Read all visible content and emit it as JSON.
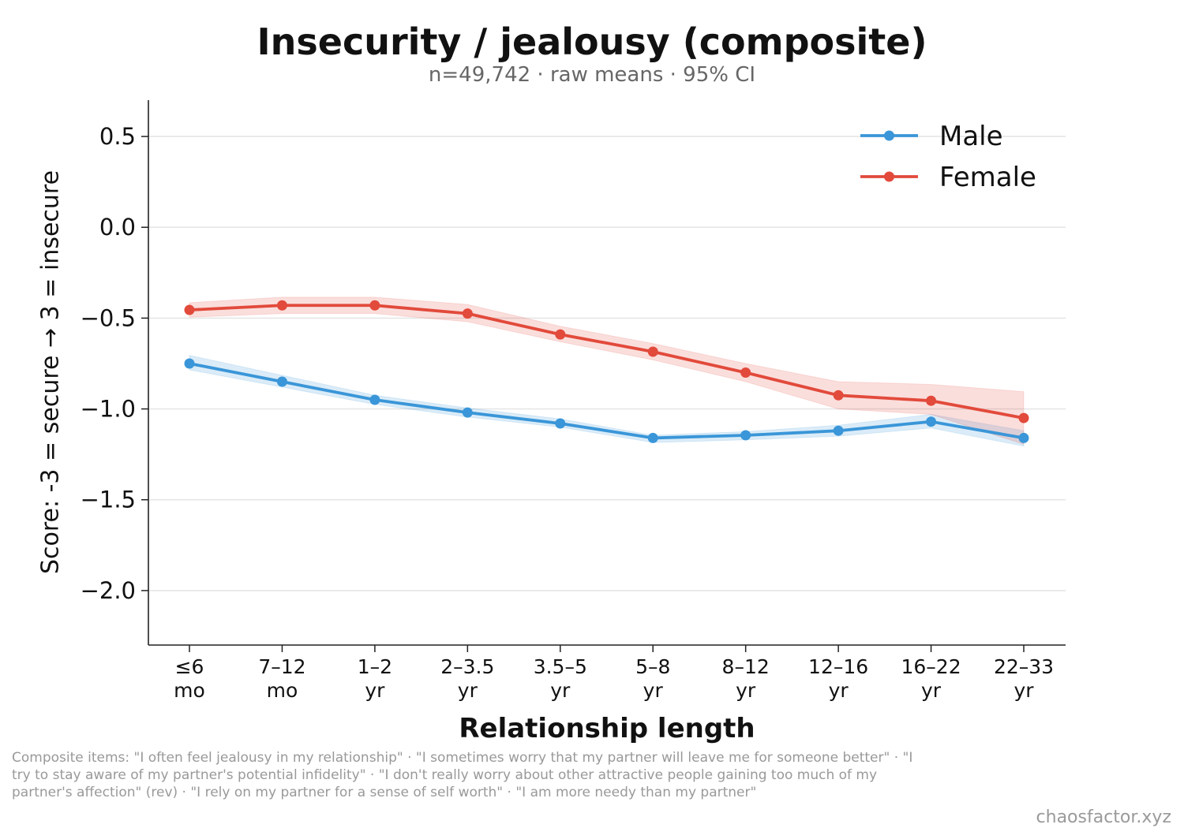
{
  "chart_data": {
    "type": "line",
    "title": "Insecurity / jealousy (composite)",
    "subtitle": "n=49,742 · raw means · 95% CI",
    "xlabel": "Relationship length",
    "ylabel": "Score: -3 = secure → 3 = insecure",
    "categories": [
      [
        "≤6",
        "mo"
      ],
      [
        "7–12",
        "mo"
      ],
      [
        "1–2",
        "yr"
      ],
      [
        "2–3.5",
        "yr"
      ],
      [
        "3.5–5",
        "yr"
      ],
      [
        "5–8",
        "yr"
      ],
      [
        "8–12",
        "yr"
      ],
      [
        "12–16",
        "yr"
      ],
      [
        "16–22",
        "yr"
      ],
      [
        "22–33",
        "yr"
      ]
    ],
    "ylim": [
      -2.3,
      0.7
    ],
    "yticks": [
      0.5,
      0.0,
      -0.5,
      -1.0,
      -1.5,
      -2.0
    ],
    "ytick_labels": [
      "0.5",
      "0.0",
      "−0.5",
      "−1.0",
      "−1.5",
      "−2.0"
    ],
    "grid": true,
    "legend_position": "top-right",
    "series": [
      {
        "name": "Male",
        "color": "#3a96d8",
        "values": [
          -0.75,
          -0.85,
          -0.95,
          -1.02,
          -1.08,
          -1.16,
          -1.145,
          -1.12,
          -1.07,
          -1.16
        ],
        "ci_low": [
          -0.785,
          -0.88,
          -0.975,
          -1.045,
          -1.1,
          -1.185,
          -1.17,
          -1.15,
          -1.105,
          -1.205
        ],
        "ci_high": [
          -0.705,
          -0.815,
          -0.925,
          -0.995,
          -1.055,
          -1.145,
          -1.125,
          -1.09,
          -1.03,
          -1.12
        ]
      },
      {
        "name": "Female",
        "color": "#e24a3b",
        "values": [
          -0.455,
          -0.43,
          -0.43,
          -0.475,
          -0.59,
          -0.685,
          -0.8,
          -0.925,
          -0.955,
          -1.05
        ],
        "ci_low": [
          -0.495,
          -0.475,
          -0.475,
          -0.52,
          -0.63,
          -0.73,
          -0.85,
          -1.0,
          -1.03,
          -1.195
        ],
        "ci_high": [
          -0.415,
          -0.385,
          -0.385,
          -0.425,
          -0.545,
          -0.64,
          -0.75,
          -0.85,
          -0.865,
          -0.905
        ]
      }
    ]
  },
  "footnote": "Composite items: \"I often feel jealousy in my relationship\" · \"I sometimes worry that my partner will leave me for someone better\" · \"I try to stay aware of my partner's potential infidelity\" · \"I don't really worry about other attractive people gaining too much of my partner's affection\" (rev) · \"I rely on my partner for a sense of self worth\" · \"I am more needy than my partner\"",
  "credit": "chaosfactor.xyz"
}
